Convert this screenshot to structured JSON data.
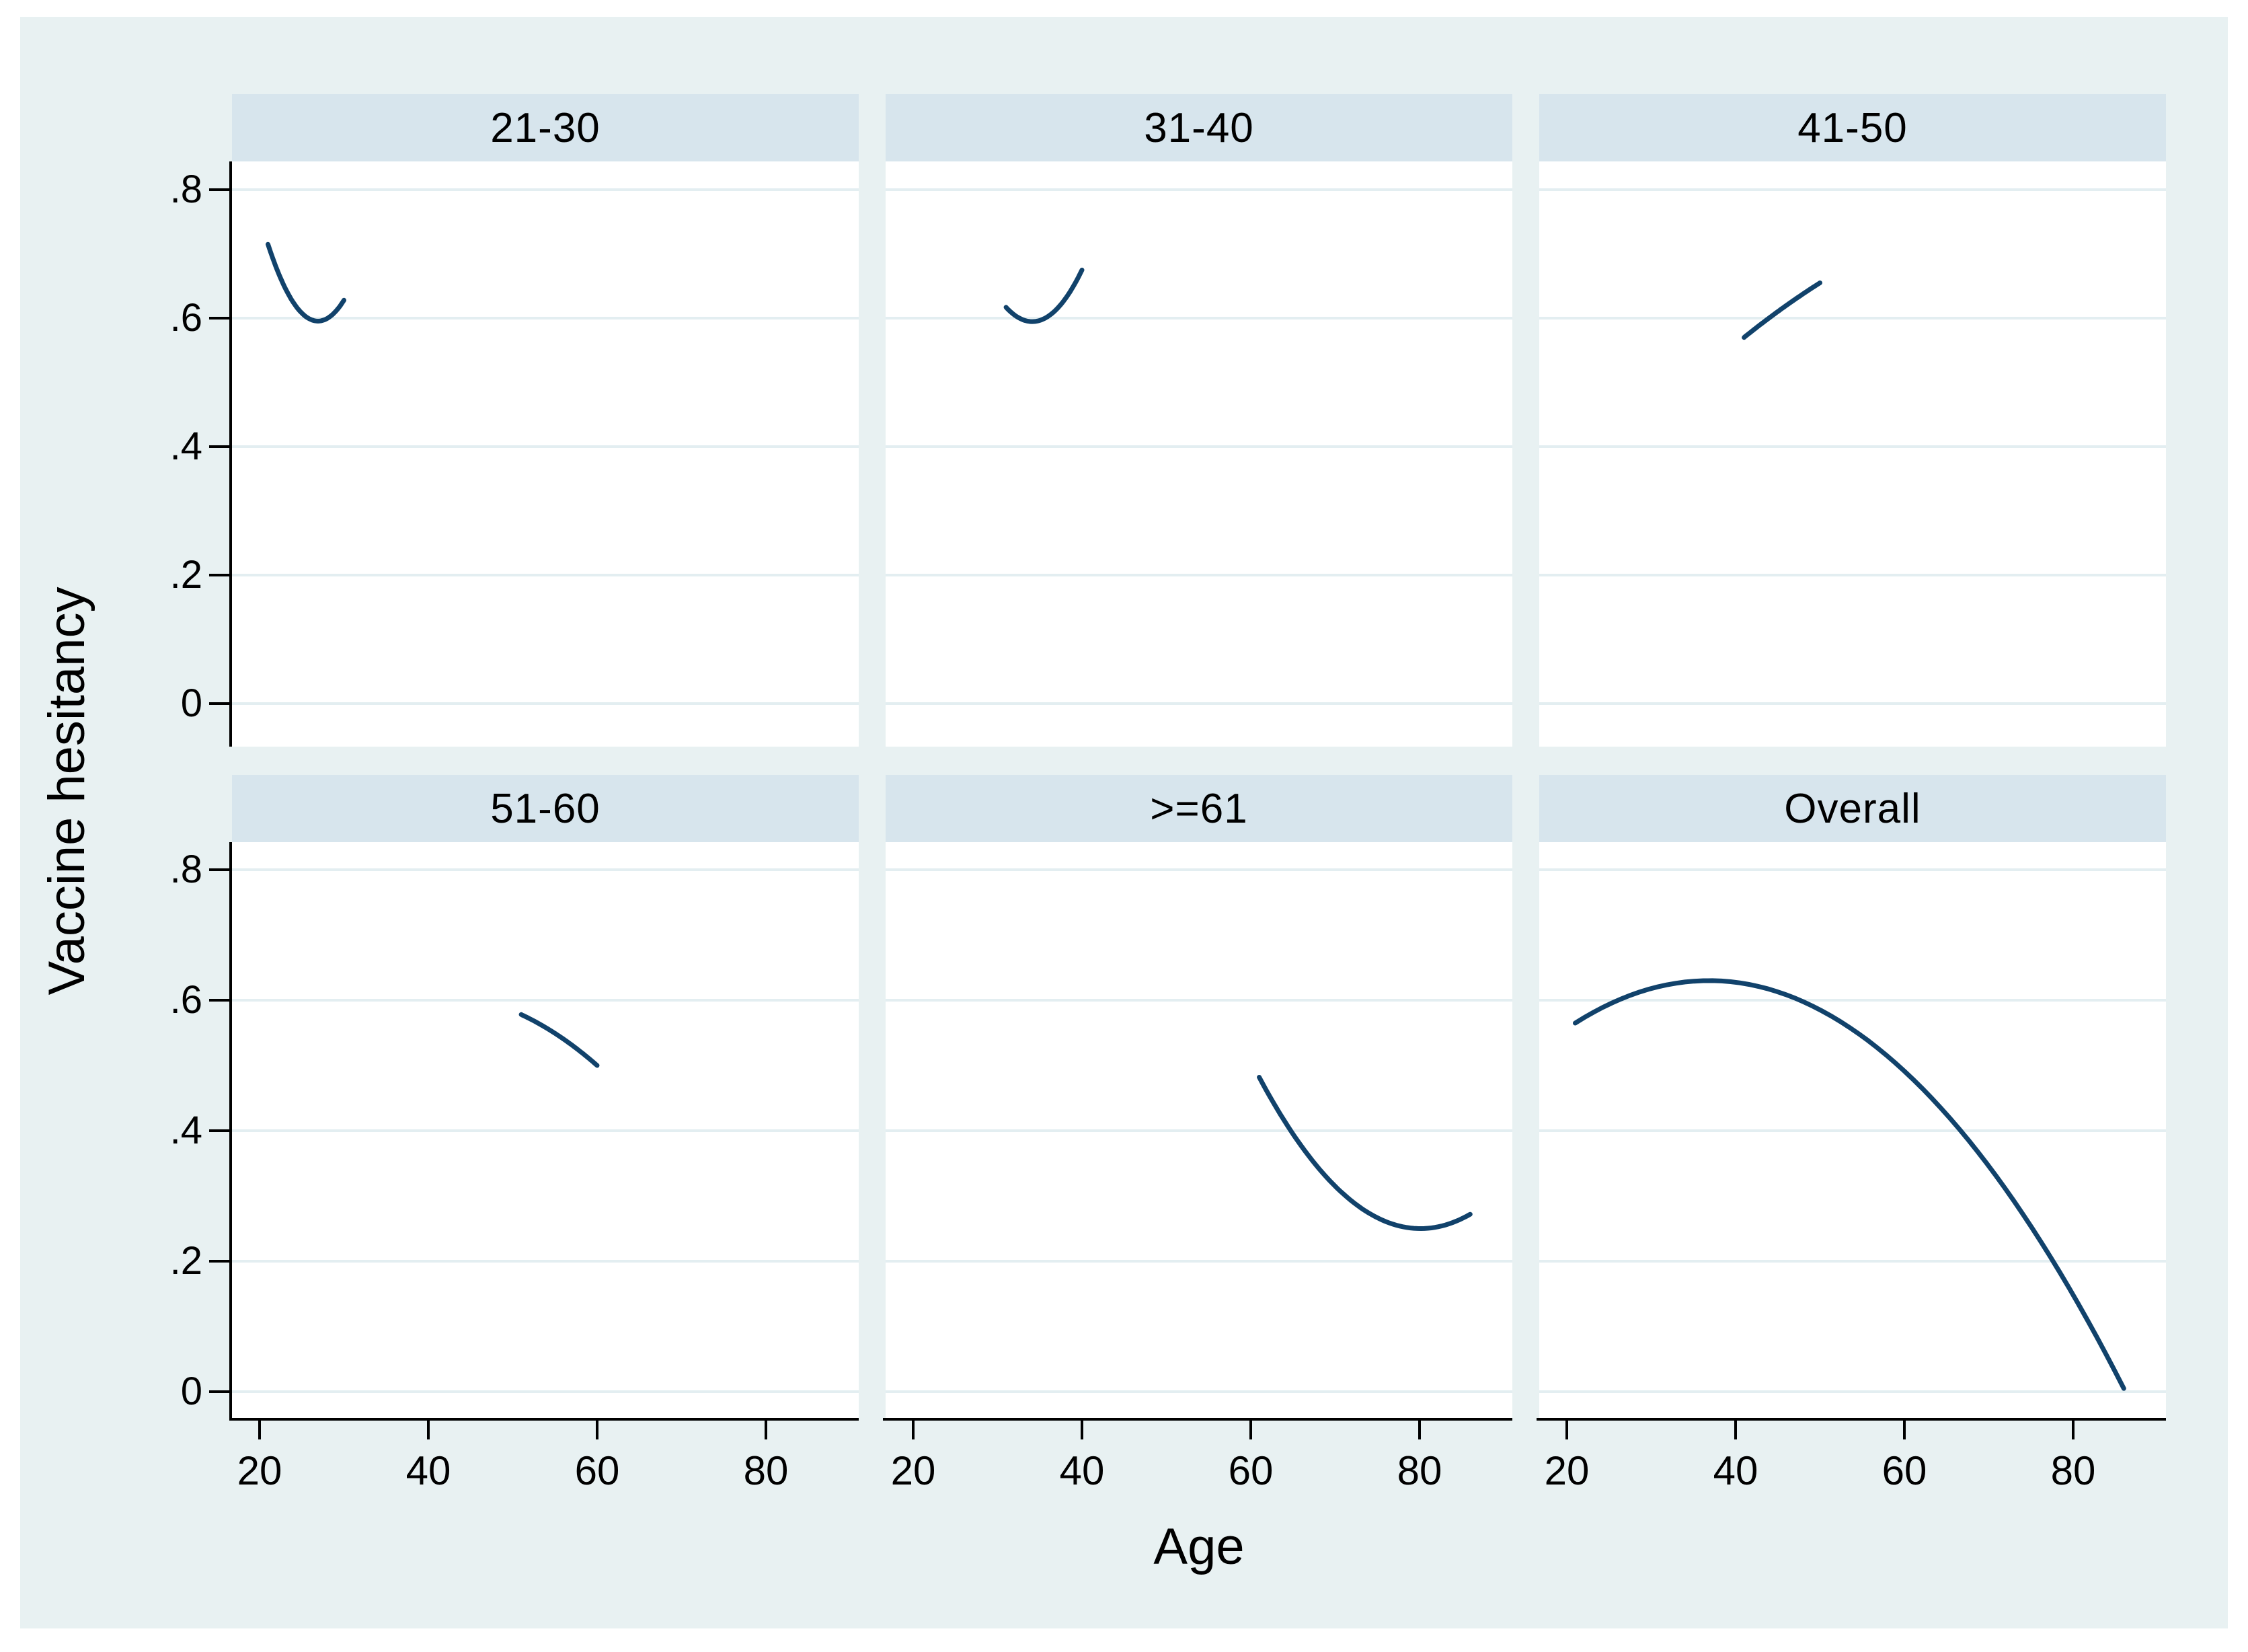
{
  "figure": {
    "y_title": "Vaccine hesitancy",
    "x_title": "Age",
    "x_ticks": [
      20,
      40,
      60,
      80
    ],
    "y_ticks": [
      {
        "label": ".8",
        "value": 0.8
      },
      {
        "label": ".6",
        "value": 0.6
      },
      {
        "label": ".4",
        "value": 0.4
      },
      {
        "label": ".2",
        "value": 0.2
      },
      {
        "label": "0",
        "value": 0
      }
    ],
    "colors": {
      "page_bg": "#ffffff",
      "figure_bg": "#e8f1f2",
      "panel_bg": "#ffffff",
      "header_band": "#d7e5ed",
      "gridline": "#e3eef1",
      "axis": "#000000",
      "line": "#11426b",
      "text": "#000000"
    }
  },
  "chart_data": {
    "type": "line",
    "title": "",
    "xlabel": "Age",
    "ylabel": "Vaccine hesitancy",
    "x_range": [
      16.7,
      91
    ],
    "y_range": [
      -0.04,
      0.85
    ],
    "x_ticks": [
      20,
      40,
      60,
      80
    ],
    "y_ticks": [
      0,
      0.2,
      0.4,
      0.6,
      0.8
    ],
    "grid": true,
    "legend": false,
    "layout": "2x3 facets, shared axes, fitted quadratic curves",
    "facets": [
      {
        "label": "21-30",
        "x": [
          21,
          26.5,
          30
        ],
        "y": [
          0.715,
          0.596,
          0.628
        ]
      },
      {
        "label": "31-40",
        "x": [
          31,
          34.5,
          40
        ],
        "y": [
          0.617,
          0.595,
          0.675
        ]
      },
      {
        "label": "41-50",
        "x": [
          41,
          45.5,
          50
        ],
        "y": [
          0.57,
          0.615,
          0.655
        ]
      },
      {
        "label": "51-60",
        "x": [
          51,
          55.5,
          60
        ],
        "y": [
          0.578,
          0.545,
          0.5
        ]
      },
      {
        "label": ">=61",
        "x": [
          61,
          80,
          86
        ],
        "y": [
          0.482,
          0.25,
          0.272
        ]
      },
      {
        "label": "Overall",
        "x": [
          21,
          37,
          86
        ],
        "y": [
          0.565,
          0.63,
          0.005
        ]
      }
    ]
  }
}
